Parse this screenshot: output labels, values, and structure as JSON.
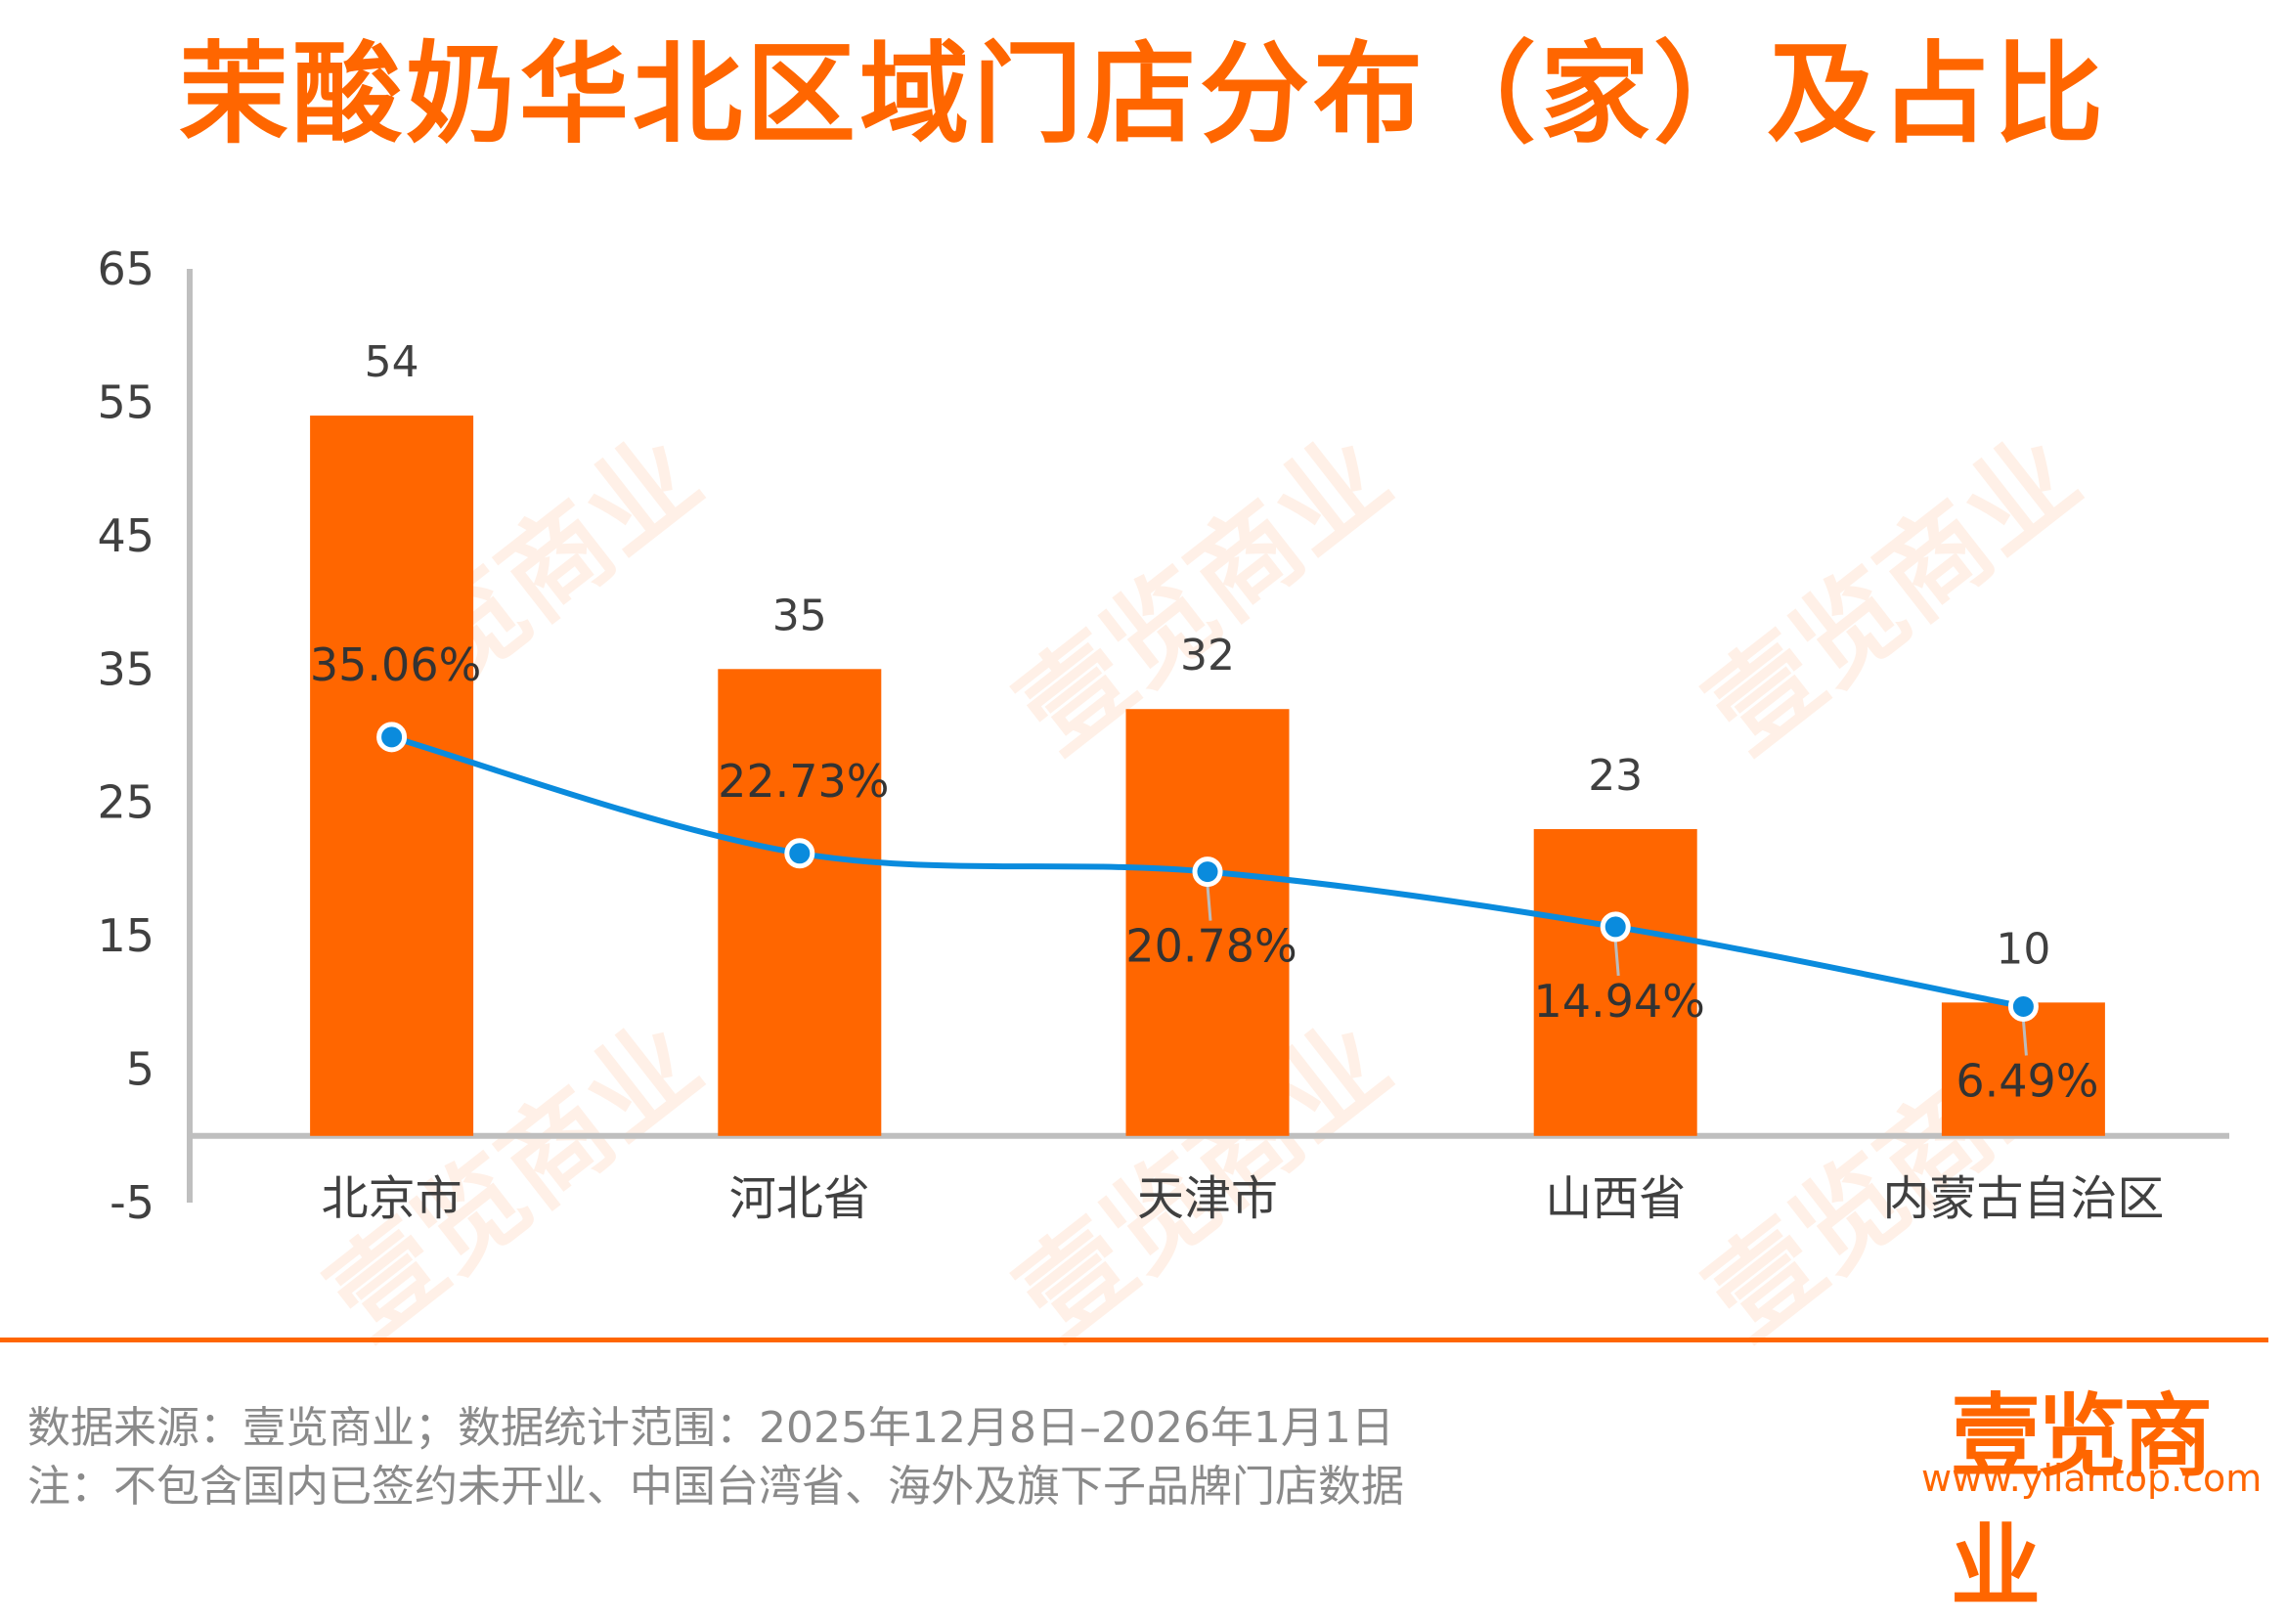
{
  "title": "茉酸奶华北区域门店分布（家）及占比",
  "chart_data": {
    "type": "bar+line",
    "title": "茉酸奶华北区域门店分布（家）及占比",
    "categories": [
      "北京市",
      "河北省",
      "天津市",
      "山西省",
      "内蒙古自治区"
    ],
    "series": [
      {
        "name": "门店数（家）",
        "type": "bar",
        "values": [
          54,
          35,
          32,
          23,
          10
        ],
        "labels": [
          "54",
          "35",
          "32",
          "23",
          "10"
        ]
      },
      {
        "name": "占比",
        "type": "line",
        "axis": "secondary",
        "values": [
          35.06,
          22.73,
          20.78,
          14.94,
          6.49
        ],
        "labels": [
          "35.06%",
          "22.73%",
          "20.78%",
          "14.94%",
          "6.49%"
        ],
        "label_position": [
          "above",
          "above",
          "below",
          "below",
          "below"
        ]
      }
    ],
    "ylim": [
      -5,
      65
    ],
    "y2lim": [
      -14.3,
      84.7
    ],
    "yticks": [
      "65",
      "55",
      "45",
      "35",
      "25",
      "15",
      "5",
      "-5"
    ],
    "ytick_values": [
      65,
      55,
      45,
      35,
      25,
      15,
      5,
      -5
    ],
    "grid": false,
    "legend": "none",
    "colors": {
      "bar": "#FF6600",
      "line": "#0A8BDD",
      "axis": "#BFBFBF",
      "text": "#404040"
    }
  },
  "footer": {
    "source": "数据来源：壹览商业；数据统计范围：2025年12月8日–2026年1月1日",
    "note": "注：不包含国内已签约未开业、中国台湾省、海外及旗下子品牌门店数据"
  },
  "brand": {
    "logo": "壹览商业",
    "url": "www.yilantop.com",
    "watermark": "壹览商业"
  }
}
